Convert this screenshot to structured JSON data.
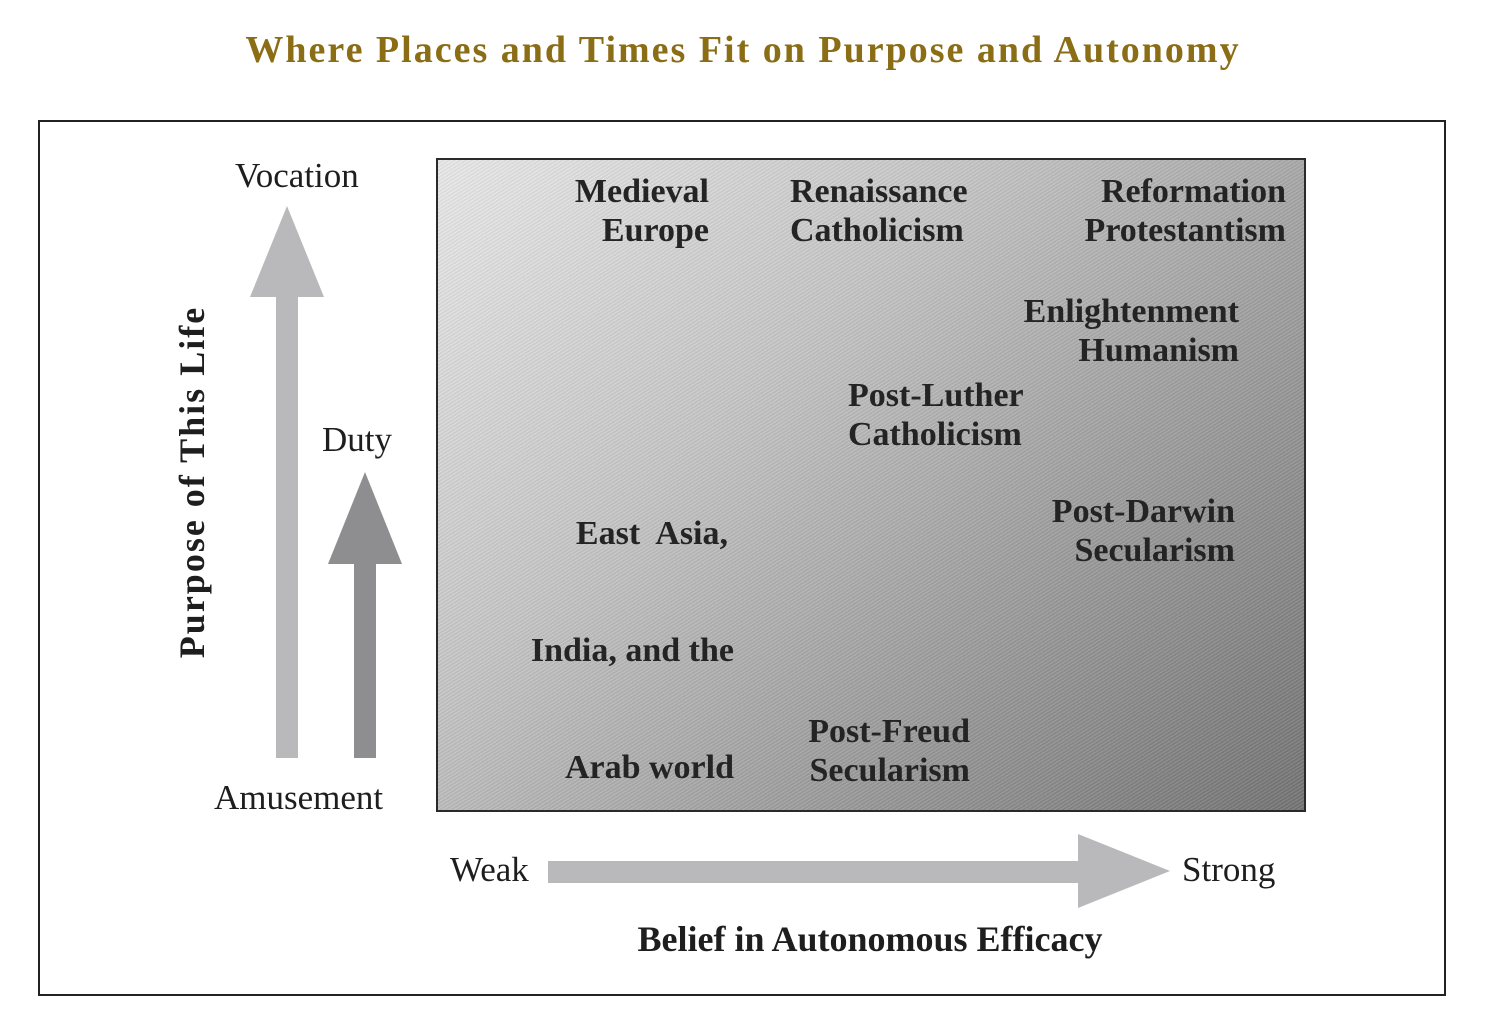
{
  "title": "Where Places and Times Fit on Purpose and Autonomy",
  "y_axis": {
    "title": "Purpose of This Life",
    "top_label": "Vocation",
    "middle_label": "Duty",
    "bottom_label": "Amusement"
  },
  "x_axis": {
    "title": "Belief in Autonomous Efficacy",
    "left_label": "Weak",
    "right_label": "Strong"
  },
  "places": {
    "medieval": [
      "Medieval",
      "Europe"
    ],
    "renaissance": [
      "Renaissance",
      "Catholicism"
    ],
    "reformation": [
      "Reformation",
      "Protestantism"
    ],
    "enlightenment": [
      "Enlightenment",
      "Humanism"
    ],
    "post_luther": [
      "Post-Luther",
      "Catholicism"
    ],
    "east_asia": [
      "East  Asia,",
      "India, and the",
      "Arab world"
    ],
    "post_darwin": [
      "Post-Darwin",
      "Secularism"
    ],
    "post_freud": [
      "Post-Freud",
      "Secularism"
    ]
  },
  "colors": {
    "title": "#8b6d16",
    "arrow_light": "#b9b9bc",
    "arrow_dark": "#8e8e91"
  }
}
